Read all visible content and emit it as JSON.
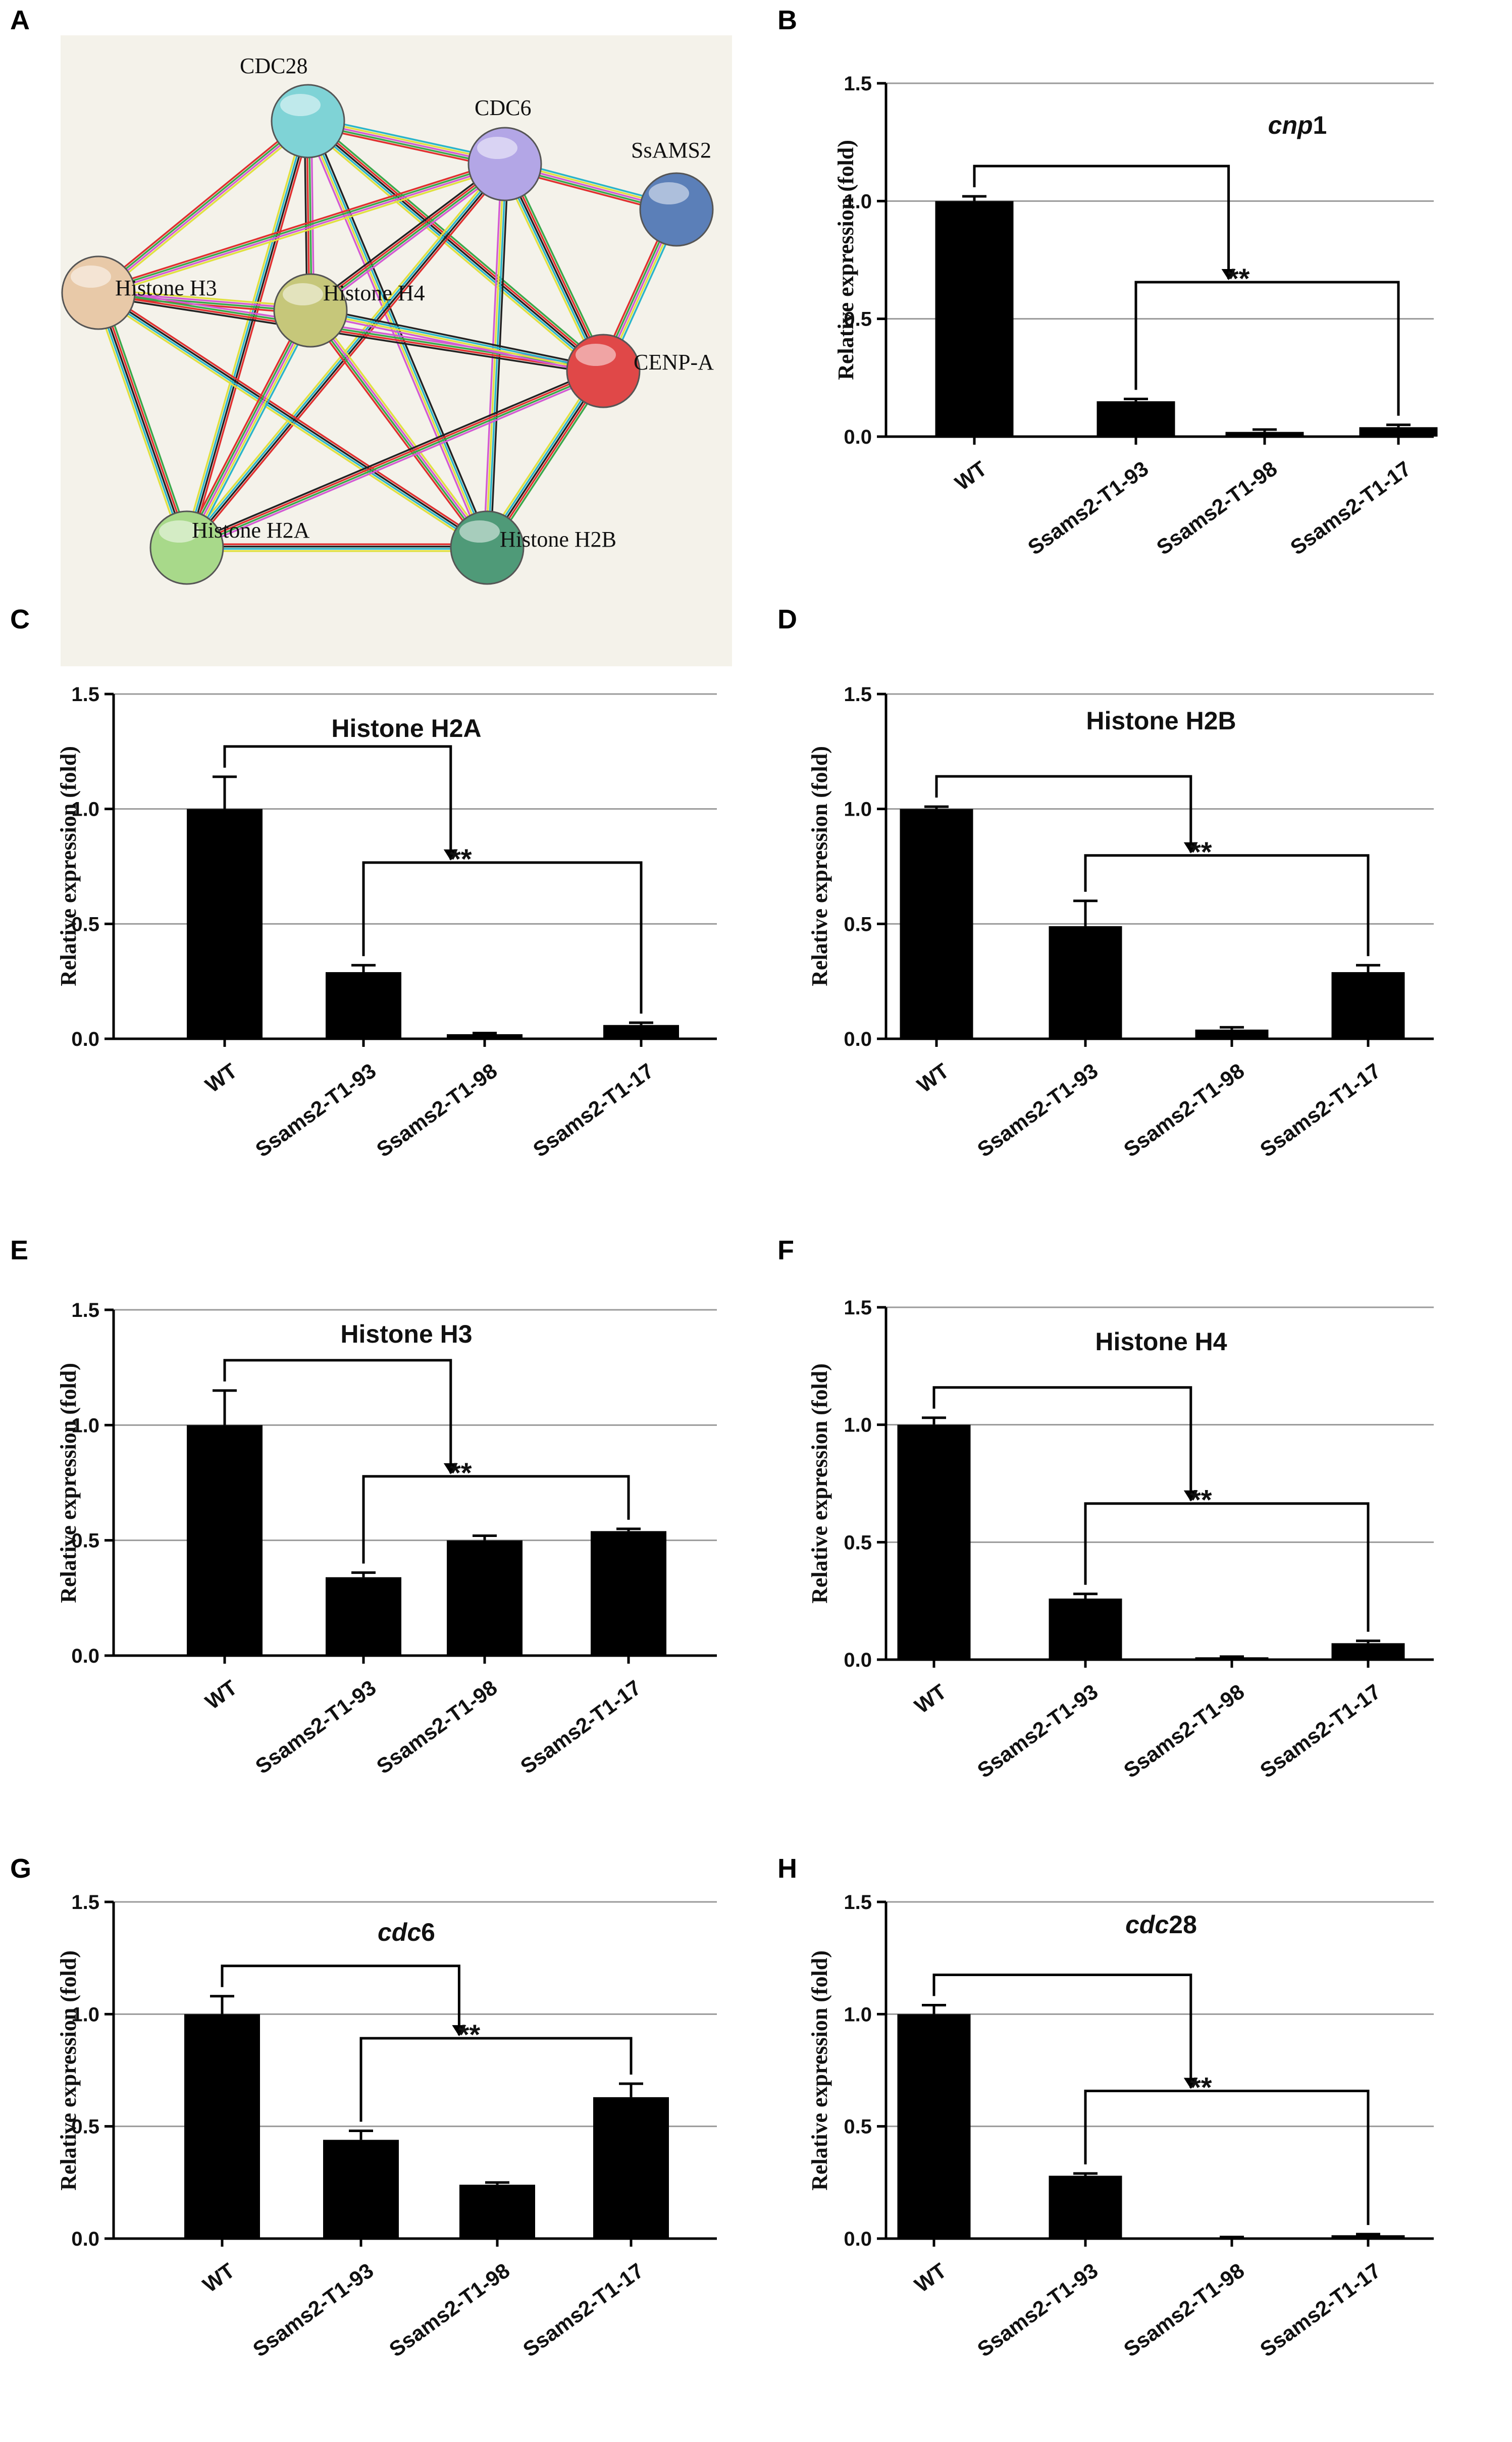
{
  "network": {
    "panel": "A",
    "nodes": [
      {
        "id": "cdc28",
        "label": "CDC28",
        "color": "#7fd3d6"
      },
      {
        "id": "cdc6",
        "label": "CDC6",
        "color": "#b3a6e6"
      },
      {
        "id": "ssams2",
        "label": "SsAMS2",
        "color": "#5b7fb8"
      },
      {
        "id": "h3",
        "label": "Histone H3",
        "color": "#e8c9a8"
      },
      {
        "id": "h4",
        "label": "Histone H4",
        "color": "#c6c77a"
      },
      {
        "id": "cenpa",
        "label": "CENP-A",
        "color": "#e04848"
      },
      {
        "id": "h2a",
        "label": "Histone H2A",
        "color": "#a8d98a"
      },
      {
        "id": "h2b",
        "label": "Histone H2B",
        "color": "#4f9a78"
      }
    ],
    "edges": [
      [
        "cdc28",
        "cdc6"
      ],
      [
        "cdc28",
        "h3"
      ],
      [
        "cdc28",
        "h4"
      ],
      [
        "cdc28",
        "cenpa"
      ],
      [
        "cdc28",
        "h2a"
      ],
      [
        "cdc28",
        "h2b"
      ],
      [
        "cdc6",
        "ssams2"
      ],
      [
        "cdc6",
        "h3"
      ],
      [
        "cdc6",
        "h4"
      ],
      [
        "cdc6",
        "cenpa"
      ],
      [
        "cdc6",
        "h2a"
      ],
      [
        "cdc6",
        "h2b"
      ],
      [
        "ssams2",
        "cenpa"
      ],
      [
        "h3",
        "h4"
      ],
      [
        "h3",
        "cenpa"
      ],
      [
        "h3",
        "h2a"
      ],
      [
        "h3",
        "h2b"
      ],
      [
        "h4",
        "cenpa"
      ],
      [
        "h4",
        "h2a"
      ],
      [
        "h4",
        "h2b"
      ],
      [
        "cenpa",
        "h2a"
      ],
      [
        "cenpa",
        "h2b"
      ],
      [
        "h2a",
        "h2b"
      ]
    ],
    "edge_colors": [
      "#2bb5c9",
      "#e0e040",
      "#d35bd3",
      "#3aa84b",
      "#e03030",
      "#222222"
    ]
  },
  "chart_data": [
    {
      "panel": "B",
      "type": "bar",
      "title": "cnp1",
      "title_italic_part": "cnp",
      "title_rest": "1",
      "ylabel": "Relative expression (fold)",
      "categories": [
        "WT",
        "Ssams2-T1-93",
        "Ssams2-T1-98",
        "Ssams2-T1-17"
      ],
      "values": [
        1.0,
        0.15,
        0.02,
        0.04
      ],
      "errors": [
        0.02,
        0.01,
        0.01,
        0.01
      ],
      "ylim": [
        0,
        1.5
      ],
      "yticks": [
        "0.0",
        "0.5",
        "1.0",
        "1.5"
      ],
      "significance": "**"
    },
    {
      "panel": "C",
      "type": "bar",
      "title": "Histone H2A",
      "ylabel": "Relative expression (fold)",
      "categories": [
        "WT",
        "Ssams2-T1-93",
        "Ssams2-T1-98",
        "Ssams2-T1-17"
      ],
      "values": [
        1.0,
        0.29,
        0.02,
        0.06
      ],
      "errors": [
        0.14,
        0.03,
        0.005,
        0.01
      ],
      "ylim": [
        0,
        1.5
      ],
      "yticks": [
        "0.0",
        "0.5",
        "1.0",
        "1.5"
      ],
      "significance": "**"
    },
    {
      "panel": "D",
      "type": "bar",
      "title": "Histone H2B",
      "ylabel": "Relative expression (fold)",
      "categories": [
        "WT",
        "Ssams2-T1-93",
        "Ssams2-T1-98",
        "Ssams2-T1-17"
      ],
      "values": [
        1.0,
        0.49,
        0.04,
        0.29
      ],
      "errors": [
        0.01,
        0.11,
        0.01,
        0.03
      ],
      "ylim": [
        0,
        1.5
      ],
      "yticks": [
        "0.0",
        "0.5",
        "1.0",
        "1.5"
      ],
      "significance": "**"
    },
    {
      "panel": "E",
      "type": "bar",
      "title": "Histone H3",
      "ylabel": "Relative expression (fold)",
      "categories": [
        "WT",
        "Ssams2-T1-93",
        "Ssams2-T1-98",
        "Ssams2-T1-17"
      ],
      "values": [
        1.0,
        0.34,
        0.5,
        0.54
      ],
      "errors": [
        0.15,
        0.02,
        0.02,
        0.01
      ],
      "ylim": [
        0,
        1.5
      ],
      "yticks": [
        "0.0",
        "0.5",
        "1.0",
        "1.5"
      ],
      "significance": "**"
    },
    {
      "panel": "F",
      "type": "bar",
      "title": "Histone H4",
      "ylabel": "Relative expression (fold)",
      "categories": [
        "WT",
        "Ssams2-T1-93",
        "Ssams2-T1-98",
        "Ssams2-T1-17"
      ],
      "values": [
        1.0,
        0.26,
        0.01,
        0.07
      ],
      "errors": [
        0.03,
        0.02,
        0.003,
        0.01
      ],
      "ylim": [
        0,
        1.5
      ],
      "yticks": [
        "0.0",
        "0.5",
        "1.0",
        "1.5"
      ],
      "significance": "**"
    },
    {
      "panel": "G",
      "type": "bar",
      "title": "cdc6",
      "title_italic_part": "cdc",
      "title_rest": "6",
      "ylabel": "Relative expression (fold)",
      "categories": [
        "WT",
        "Ssams2-T1-93",
        "Ssams2-T1-98",
        "Ssams2-T1-17"
      ],
      "values": [
        1.0,
        0.44,
        0.24,
        0.63
      ],
      "errors": [
        0.08,
        0.04,
        0.01,
        0.06
      ],
      "ylim": [
        0,
        1.5
      ],
      "yticks": [
        "0.0",
        "0.5",
        "1.0",
        "1.5"
      ],
      "significance": "**"
    },
    {
      "panel": "H",
      "type": "bar",
      "title": "cdc28",
      "title_italic_part": "cdc",
      "title_rest": "28",
      "ylabel": "Relative expression (fold)",
      "categories": [
        "WT",
        "Ssams2-T1-93",
        "Ssams2-T1-98",
        "Ssams2-T1-17"
      ],
      "values": [
        1.0,
        0.28,
        0.005,
        0.015
      ],
      "errors": [
        0.04,
        0.01,
        0.002,
        0.005
      ],
      "ylim": [
        0,
        1.5
      ],
      "yticks": [
        "0.0",
        "0.5",
        "1.0",
        "1.5"
      ],
      "significance": "**"
    }
  ]
}
